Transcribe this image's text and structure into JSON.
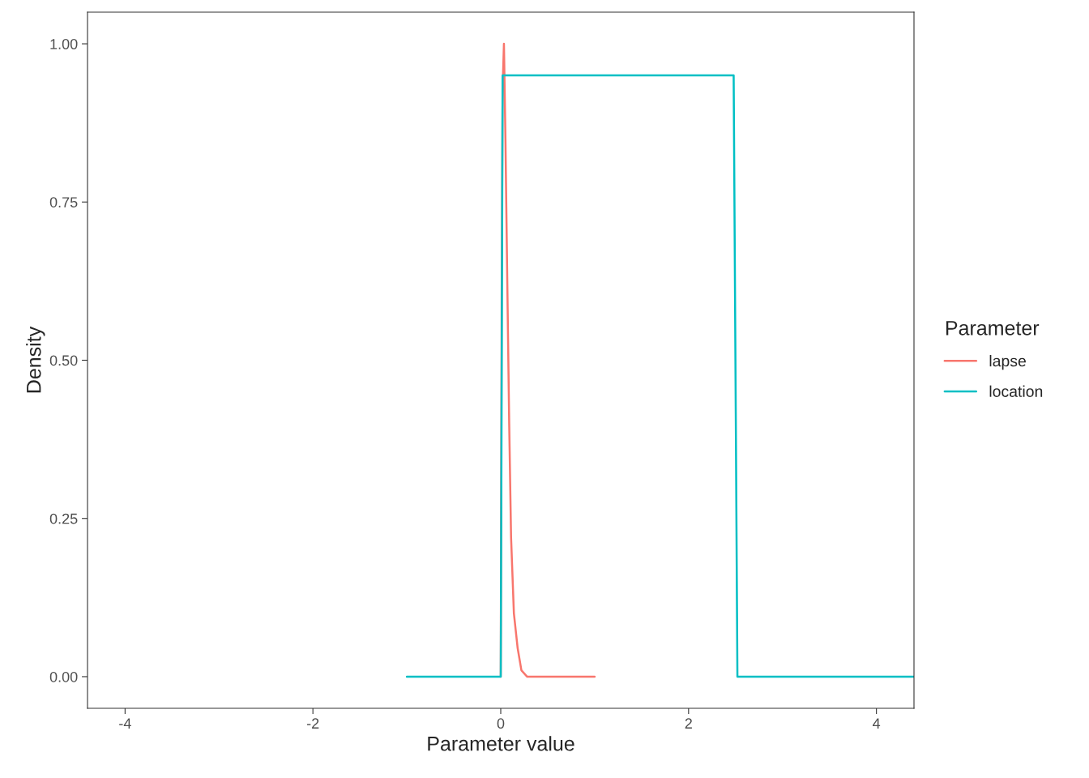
{
  "chart_data": {
    "type": "line",
    "xlabel": "Parameter value",
    "ylabel": "Density",
    "legend_title": "Parameter",
    "series": [
      {
        "name": "lapse",
        "color": "#f8766d",
        "x": [
          0,
          0.01,
          0.02,
          0.034,
          0.05,
          0.07,
          0.09,
          0.11,
          0.14,
          0.18,
          0.22,
          0.28,
          0.5,
          1.0
        ],
        "values": [
          0,
          0.6,
          0.93,
          1.0,
          0.85,
          0.62,
          0.4,
          0.22,
          0.1,
          0.045,
          0.01,
          0,
          0,
          0
        ]
      },
      {
        "name": "location",
        "color": "#00bfc4",
        "x": [
          -1,
          0,
          0.02,
          2.48,
          2.52,
          4.4
        ],
        "values": [
          0,
          0,
          0.95,
          0.95,
          0,
          0
        ]
      }
    ],
    "xlim": [
      -4.4,
      4.4
    ],
    "xticks": [
      -4,
      -2,
      0,
      2,
      4
    ],
    "ylim": [
      -0.05,
      1.05
    ],
    "yticks": [
      {
        "value": 0,
        "label": "0.00"
      },
      {
        "value": 0.25,
        "label": "0.25"
      },
      {
        "value": 0.5,
        "label": "0.50"
      },
      {
        "value": 0.75,
        "label": "0.75"
      },
      {
        "value": 1,
        "label": "1.00"
      }
    ],
    "grid": false,
    "legend": "right",
    "line_style": "solid",
    "marker": "none"
  }
}
